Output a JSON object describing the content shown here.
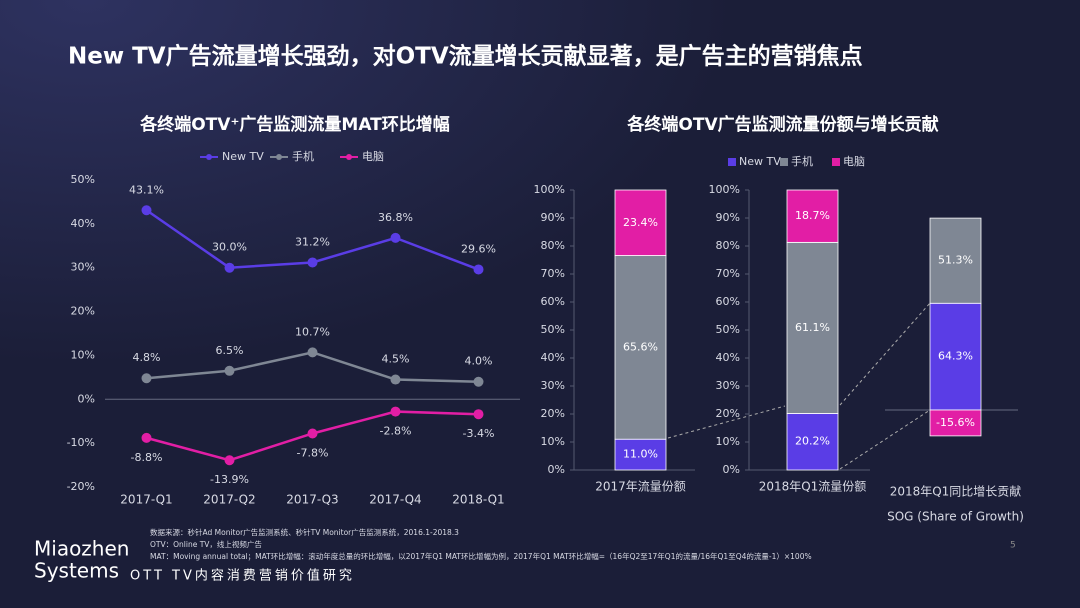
{
  "title": "New TV广告流量增长强劲，对OTV流量增长贡献显著，是广告主的营销焦点",
  "chart_data": [
    {
      "type": "line",
      "title": "各终端OTV⁺广告监测流量MAT环比增幅",
      "categories": [
        "2017-Q1",
        "2017-Q2",
        "2017-Q3",
        "2017-Q4",
        "2018-Q1"
      ],
      "series": [
        {
          "name": "New TV",
          "color": "#5a3de6",
          "values": [
            43.1,
            30.0,
            31.2,
            36.8,
            29.6
          ],
          "value_labels": [
            "43.1%",
            "30.0%",
            "31.2%",
            "36.8%",
            "29.6%"
          ]
        },
        {
          "name": "手机",
          "color": "#7f8794",
          "values": [
            4.8,
            6.5,
            10.7,
            4.5,
            4.0
          ],
          "value_labels": [
            "4.8%",
            "6.5%",
            "10.7%",
            "4.5%",
            "4.0%"
          ]
        },
        {
          "name": "电脑",
          "color": "#e21ea5",
          "values": [
            -8.8,
            -13.9,
            -7.8,
            -2.8,
            -3.4
          ],
          "value_labels": [
            "-8.8%",
            "-13.9%",
            "-7.8%",
            "-2.8%",
            "-3.4%"
          ]
        }
      ],
      "ylim": [
        -20,
        50
      ],
      "yticks": [
        {
          "value": -20,
          "label": "-20%"
        },
        {
          "value": -10,
          "label": "-10%"
        },
        {
          "value": 0,
          "label": "0%"
        },
        {
          "value": 10,
          "label": "10%"
        },
        {
          "value": 20,
          "label": "20%"
        },
        {
          "value": 30,
          "label": "30%"
        },
        {
          "value": 40,
          "label": "40%"
        },
        {
          "value": 50,
          "label": "50%"
        }
      ],
      "legend": "top"
    },
    {
      "type": "stacked_bar",
      "title": "各终端OTV广告监测流量份额与增长贡献",
      "categories": [
        "2017年流量份额",
        "2018年Q1流量份额"
      ],
      "series": [
        {
          "name": "New TV",
          "color": "#5a3de6",
          "values": [
            11.0,
            20.2
          ],
          "value_labels": [
            "11.0%",
            "20.2%"
          ]
        },
        {
          "name": "手机",
          "color": "#7f8794",
          "values": [
            65.6,
            61.1
          ],
          "value_labels": [
            "65.6%",
            "61.1%"
          ]
        },
        {
          "name": "电脑",
          "color": "#e21ea5",
          "values": [
            23.4,
            18.7
          ],
          "value_labels": [
            "23.4%",
            "18.7%"
          ]
        }
      ],
      "ylim": [
        0,
        100
      ],
      "yticks": [
        {
          "value": 0,
          "label": "0%"
        },
        {
          "value": 10,
          "label": "10%"
        },
        {
          "value": 20,
          "label": "20%"
        },
        {
          "value": 30,
          "label": "30%"
        },
        {
          "value": 40,
          "label": "40%"
        },
        {
          "value": 50,
          "label": "50%"
        },
        {
          "value": 60,
          "label": "60%"
        },
        {
          "value": 70,
          "label": "70%"
        },
        {
          "value": 80,
          "label": "80%"
        },
        {
          "value": 90,
          "label": "90%"
        },
        {
          "value": 100,
          "label": "100%"
        }
      ],
      "legend": "top"
    },
    {
      "type": "sog",
      "categories": [
        "2018年Q1同比增长贡献"
      ],
      "subtitle": "SOG (Share of Growth)",
      "series": [
        {
          "color": "#5a3de6",
          "values": [
            64.3
          ],
          "value_labels": [
            "64.3%"
          ]
        },
        {
          "color": "#7f8794",
          "values": [
            51.3
          ],
          "value_labels": [
            "51.3%"
          ]
        },
        {
          "color": "#e21ea5",
          "values": [
            -15.6
          ],
          "value_labels": [
            "-15.6%"
          ]
        }
      ]
    }
  ],
  "notes": [
    "数据来源：秒针Ad Monitor广告监测系统、秒针TV Monitor广告监测系统，2016.1-2018.3",
    "OTV：Online TV，线上视频广告",
    "MAT：Moving annual total；MAT环比增幅：滚动年度总量的环比增幅，以2017年Q1 MAT环比增幅为例，2017年Q1 MAT环比增幅=（16年Q2至17年Q1的流量/16年Q1至Q4的流量-1）×100%"
  ],
  "logo": [
    "Miaozhen",
    "Systems"
  ],
  "footer": "OTT TV内容消费营销价值研究",
  "page": 5
}
